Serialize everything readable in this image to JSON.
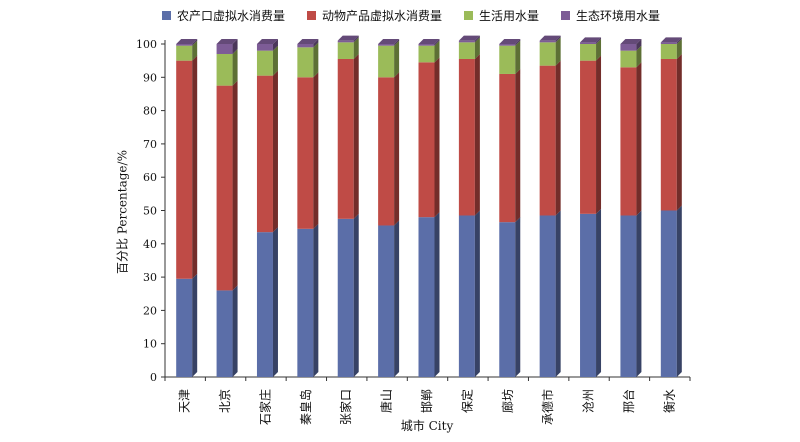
{
  "chart_data": {
    "type": "bar",
    "stacked": true,
    "style": "3d-stacked-column",
    "title": "",
    "xlabel": "城市 City",
    "ylabel": "百分比 Percentage/%",
    "ylim": [
      0,
      100
    ],
    "yticks": [
      0,
      10,
      20,
      30,
      40,
      50,
      60,
      70,
      80,
      90,
      100
    ],
    "grid": false,
    "legend_position": "top",
    "categories": [
      "天津",
      "北京",
      "石家庄",
      "秦皇岛",
      "张家口",
      "唐山",
      "邯郸",
      "保定",
      "廊坊",
      "承德市",
      "沧州",
      "邢台",
      "衡水"
    ],
    "series": [
      {
        "name": "农产口虚拟水消费量",
        "color": "#5b6ea8",
        "values": [
          29.5,
          26,
          43.5,
          44.5,
          47.5,
          45.5,
          48,
          48.5,
          46.5,
          48.5,
          49,
          48.5,
          50
        ]
      },
      {
        "name": "动物产品虚拟水消费量",
        "color": "#bf4b46",
        "values": [
          65.5,
          61.5,
          47,
          45.5,
          48,
          44.5,
          46.5,
          47,
          44.5,
          45,
          46,
          44.5,
          45.5
        ]
      },
      {
        "name": "生活用水量",
        "color": "#9bbb59",
        "values": [
          4.5,
          9.5,
          7.5,
          9,
          5,
          9.5,
          5,
          5,
          8.5,
          7,
          5,
          5,
          4.5
        ]
      },
      {
        "name": "生态环境用水量",
        "color": "#7d5c96",
        "values": [
          0.5,
          3,
          2,
          1,
          0.5,
          0.5,
          0.5,
          0.5,
          0.5,
          0.5,
          0.5,
          2,
          0.5
        ]
      }
    ]
  }
}
